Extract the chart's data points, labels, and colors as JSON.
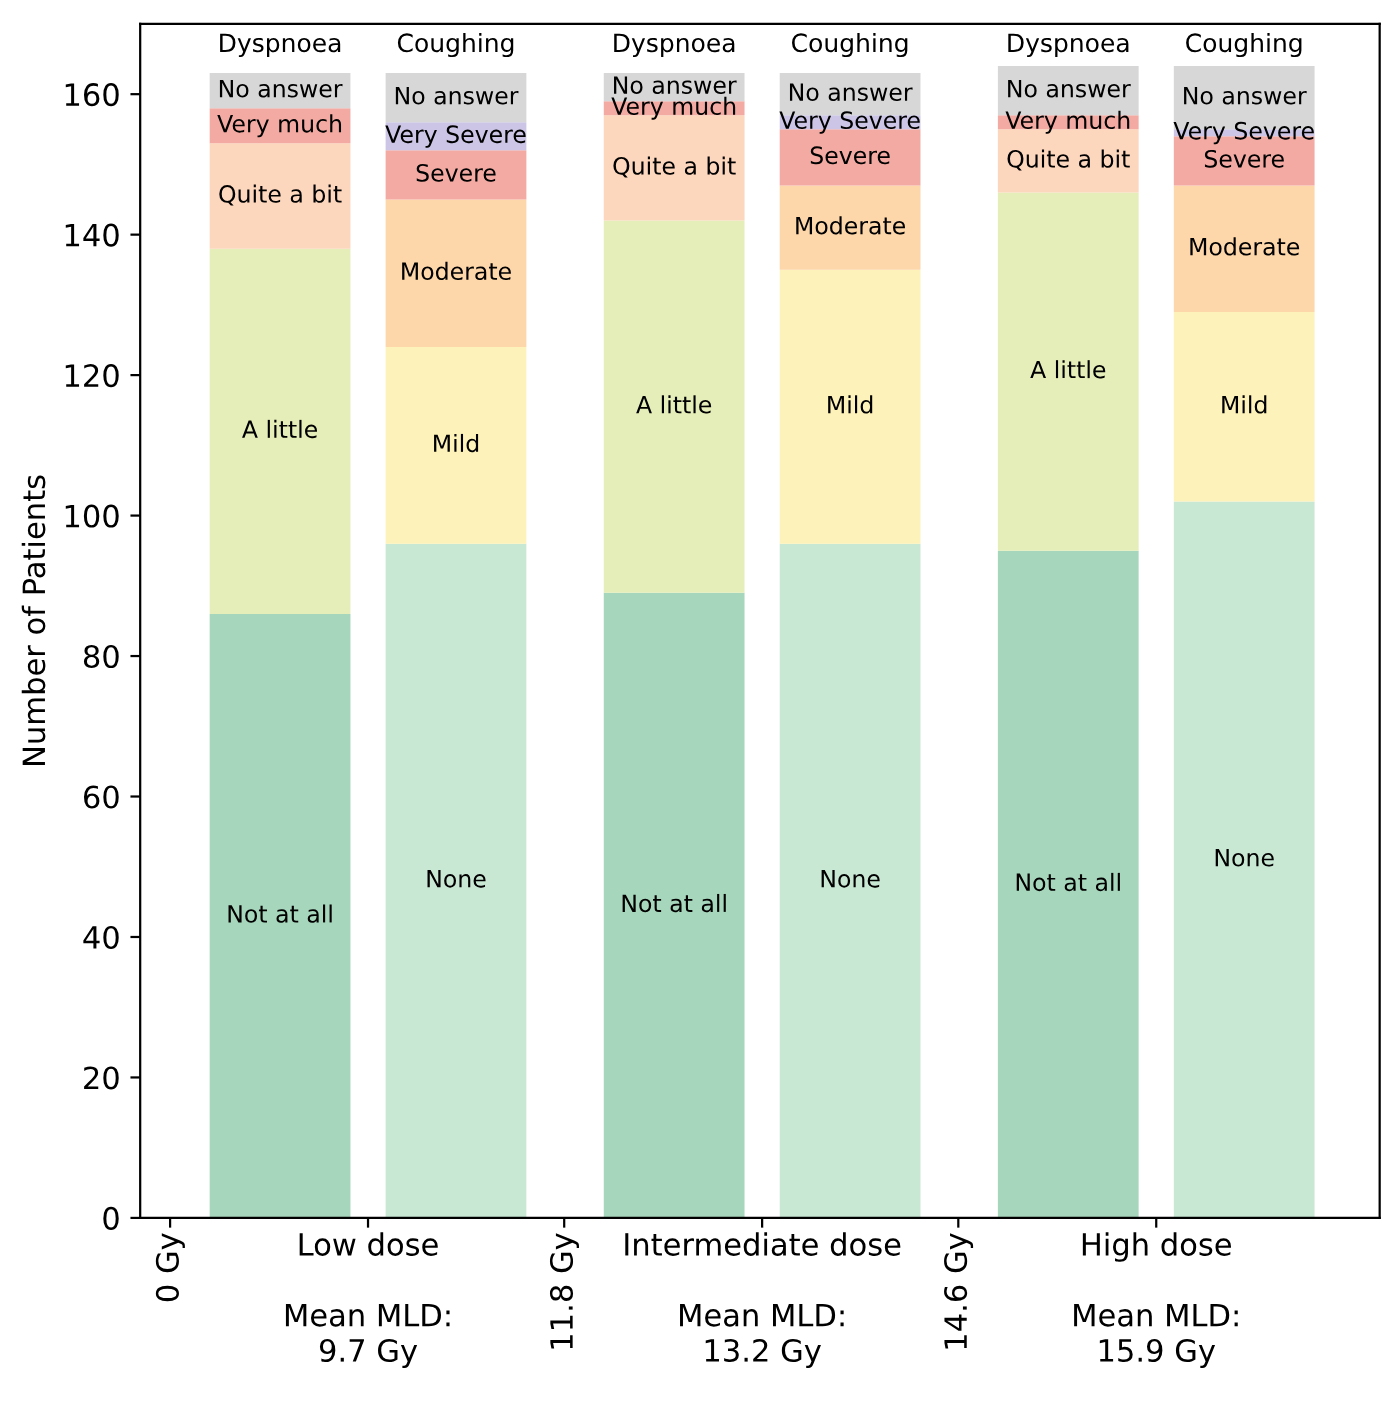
{
  "chart_data": {
    "type": "bar",
    "stacked": true,
    "ylabel": "Number of Patients",
    "categories": [
      null,
      null,
      null,
      null,
      null,
      null
    ],
    "ylim": [
      0,
      170
    ],
    "yticks": [
      0,
      20,
      40,
      60,
      80,
      100,
      120,
      140,
      160
    ],
    "grid": false,
    "series": [
      {
        "colors": [
          "#a6d6bb",
          "#c9e8d4",
          "#a6d6bb",
          "#c9e8d4",
          "#a6d6bb",
          "#c9e8d4"
        ],
        "values": [
          86,
          96,
          89,
          96,
          95,
          102
        ],
        "value_labels": [
          "Not at all",
          "None",
          "Not at all",
          "None",
          "Not at all",
          "None"
        ]
      },
      {
        "colors": [
          "#e5eeb8",
          "#fdf2b9",
          "#e5eeb8",
          "#fdf2b9",
          "#e5eeb8",
          "#fdf2b9"
        ],
        "values": [
          52,
          28,
          53,
          39,
          51,
          27
        ],
        "value_labels": [
          "A little",
          "Mild",
          "A little",
          "Mild",
          "A little",
          "Mild"
        ]
      },
      {
        "colors": [
          "#fcd6bd",
          "#fdd6aa",
          "#fcd6bd",
          "#fdd6aa",
          "#fcd6bd",
          "#fdd6aa"
        ],
        "values": [
          15,
          21,
          15,
          12,
          9,
          18
        ],
        "value_labels": [
          "Quite a bit",
          "Moderate",
          "Quite a bit",
          "Moderate",
          "Quite a bit",
          "Moderate"
        ]
      },
      {
        "colors": [
          "#f3aaa3",
          "#f3aaa3",
          "#f3aaa3",
          "#f3aaa3",
          "#f3aaa3",
          "#f3aaa3"
        ],
        "values": [
          5,
          7,
          2,
          8,
          2,
          7
        ],
        "value_labels": [
          "Very much",
          "Severe",
          "Very much",
          "Severe",
          "Very much",
          "Severe"
        ]
      },
      {
        "colors": [
          "#cdc5e6",
          "#cdc5e6",
          "#cdc5e6",
          "#cdc5e6",
          "#cdc5e6",
          "#cdc5e6"
        ],
        "values": [
          null,
          4,
          null,
          2,
          null,
          1
        ],
        "value_labels": [
          null,
          "Very Severe",
          null,
          "Very Severe",
          null,
          "Very Severe"
        ]
      },
      {
        "colors": [
          "#d7d7d7",
          "#d7d7d7",
          "#d7d7d7",
          "#d7d7d7",
          "#d7d7d7",
          "#d7d7d7"
        ],
        "values": [
          5,
          7,
          4,
          6,
          7,
          9
        ],
        "value_labels": [
          "No answer",
          "No answer",
          "No answer",
          "No answer",
          "No answer",
          "No answer"
        ]
      }
    ],
    "annotations": [
      "Dyspnoea",
      "Coughing",
      "Dyspnoea",
      "Coughing",
      "Dyspnoea",
      "Coughing",
      "Low dose\n\nMean MLD:\n9.7 Gy",
      "Intermediate dose\n\nMean MLD:\n13.2 Gy",
      "High dose\n\nMean MLD:\n15.9 Gy",
      "0 Gy",
      "11.8 Gy",
      "14.6 Gy"
    ]
  }
}
